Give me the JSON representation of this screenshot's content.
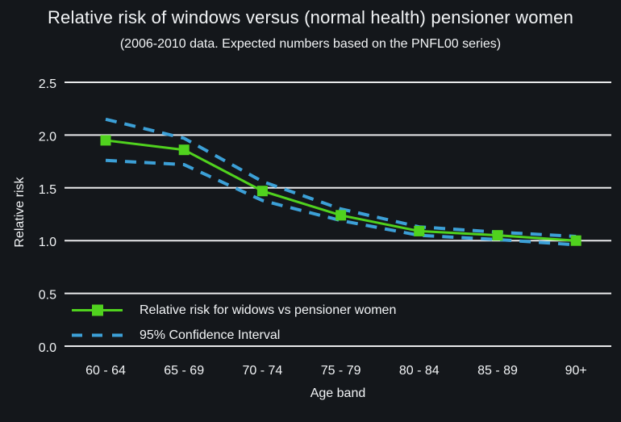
{
  "header": {
    "title": "Relative risk of windows versus (normal health) pensioner women",
    "subtitle": "(2006-2010 data. Expected numbers based on the PNFL00 series)"
  },
  "colors": {
    "background": "#14171b",
    "text": "#f2f4f6",
    "gridline": "#e9eaec",
    "series_green": "#50d21e",
    "ci_blue": "#3ca0d7"
  },
  "axes": {
    "y_label": "Relative risk",
    "x_label": "Age band",
    "y_tick_labels": [
      "0.0",
      "0.5",
      "1.0",
      "1.5",
      "2.0",
      "2.5"
    ]
  },
  "legend": {
    "items": [
      {
        "label": "Relative risk for widows vs pensioner women",
        "swatch": "green-line-with-square-marker"
      },
      {
        "label": "95% Confidence Interval",
        "swatch": "blue-dashed-line"
      }
    ]
  },
  "chart_data": {
    "type": "line",
    "title": "Relative risk of windows versus (normal health) pensioner women",
    "subtitle": "(2006-2010 data. Expected numbers based on the PNFL00 series)",
    "xlabel": "Age band",
    "ylabel": "Relative risk",
    "categories": [
      "60 - 64",
      "65 - 69",
      "70 - 74",
      "75 - 79",
      "80 - 84",
      "85 - 89",
      "90+"
    ],
    "series": [
      {
        "name": "Relative risk for widows vs pensioner women",
        "style": "solid",
        "marker": "square",
        "color": "#50d21e",
        "values": [
          1.95,
          1.86,
          1.47,
          1.24,
          1.09,
          1.05,
          1.0
        ]
      },
      {
        "name": "95% Confidence Interval (upper bound)",
        "style": "dashed",
        "marker": "none",
        "color": "#3ca0d7",
        "values": [
          2.15,
          1.97,
          1.56,
          1.3,
          1.13,
          1.08,
          1.04
        ]
      },
      {
        "name": "95% Confidence Interval (lower bound)",
        "style": "dashed",
        "marker": "none",
        "color": "#3ca0d7",
        "values": [
          1.76,
          1.72,
          1.38,
          1.19,
          1.05,
          1.01,
          0.96
        ]
      }
    ],
    "ylim": [
      0.0,
      2.5
    ],
    "yticks": [
      0.0,
      0.5,
      1.0,
      1.5,
      2.0,
      2.5
    ],
    "grid": true,
    "legend_position": "inside-bottom-left"
  }
}
